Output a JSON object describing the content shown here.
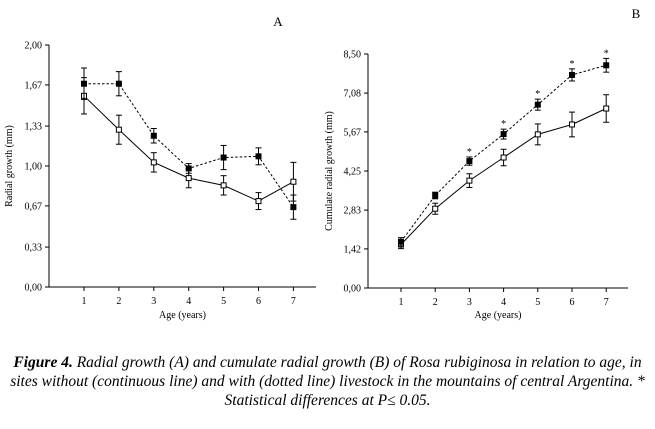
{
  "chart_data": [
    {
      "type": "line",
      "panel_label": "A",
      "xlabel": "Age (years)",
      "ylabel": "Radial growth (mm)",
      "x": [
        1,
        2,
        3,
        4,
        5,
        6,
        7
      ],
      "ylim": [
        0,
        2
      ],
      "y_ticks": [
        "0,00",
        "0,33",
        "0,67",
        "1,00",
        "1,33",
        "1,67",
        "2,00"
      ],
      "y_tick_values": [
        0,
        0.33,
        0.67,
        1.0,
        1.33,
        1.67,
        2.0
      ],
      "series": [
        {
          "style": "continuous",
          "marker": "open-square",
          "values": [
            1.58,
            1.3,
            1.03,
            0.9,
            0.84,
            0.71,
            0.87
          ],
          "errors": [
            0.15,
            0.12,
            0.08,
            0.08,
            0.08,
            0.07,
            0.16
          ]
        },
        {
          "style": "dotted",
          "marker": "filled-square",
          "values": [
            1.68,
            1.68,
            1.25,
            0.98,
            1.07,
            1.08,
            0.66
          ],
          "errors": [
            0.13,
            0.1,
            0.06,
            0.04,
            0.1,
            0.07,
            0.1
          ]
        }
      ]
    },
    {
      "type": "line",
      "panel_label": "B",
      "xlabel": "Age (years)",
      "ylabel": "Cumulate radial growth (mm)",
      "x": [
        1,
        2,
        3,
        4,
        5,
        6,
        7
      ],
      "ylim": [
        0,
        8.5
      ],
      "y_ticks": [
        "0,00",
        "1,42",
        "2,83",
        "4,25",
        "5,67",
        "7,08",
        "8,50"
      ],
      "y_tick_values": [
        0,
        1.42,
        2.83,
        4.25,
        5.67,
        7.08,
        8.5
      ],
      "series": [
        {
          "style": "continuous",
          "marker": "open-square",
          "values": [
            1.58,
            2.88,
            3.9,
            4.74,
            5.58,
            5.94,
            6.52
          ],
          "errors": [
            0.15,
            0.2,
            0.25,
            0.3,
            0.38,
            0.45,
            0.5
          ]
        },
        {
          "style": "dotted",
          "marker": "filled-square",
          "values": [
            1.68,
            3.36,
            4.61,
            5.59,
            6.66,
            7.74,
            8.09
          ],
          "errors": [
            0.15,
            0.12,
            0.15,
            0.18,
            0.2,
            0.22,
            0.25
          ]
        }
      ],
      "significant_marker": "*",
      "significant_x": [
        3,
        4,
        5,
        6,
        7
      ]
    }
  ],
  "caption": {
    "label": "Figure 4.",
    "text": " Radial growth (A) and cumulate radial growth (B) of Rosa rubiginosa in relation to age, in sites without (continuous line) and with (dotted line) livestock in the mountains of central Argentina. * Statistical differences at P≤ 0.05."
  }
}
